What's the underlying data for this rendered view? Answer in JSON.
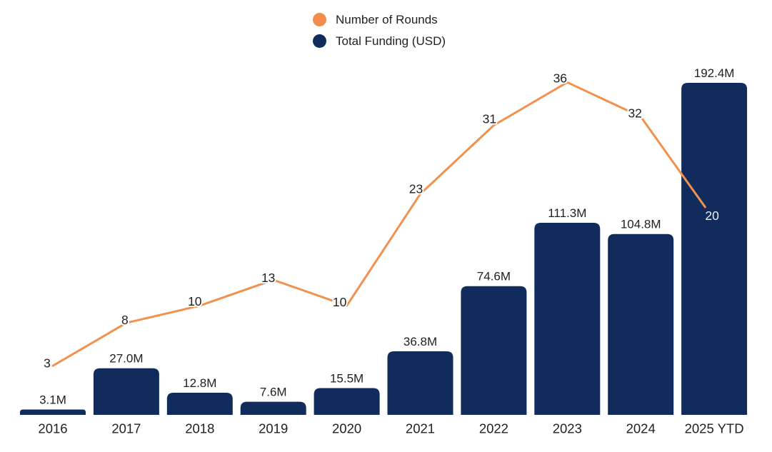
{
  "page": {
    "background": "#ffffff",
    "text_color": "#212121"
  },
  "legend": {
    "items": [
      {
        "label": "Number of Rounds",
        "color": "#F28C4D"
      },
      {
        "label": "Total Funding (USD)",
        "color": "#112B5D"
      }
    ]
  },
  "chart_data": {
    "type": "combo-bar-line",
    "title": "",
    "xlabel": "",
    "ylabel": "",
    "grid": false,
    "axis_lines": "none",
    "legend_position": "top-center",
    "categories": [
      "2016",
      "2017",
      "2018",
      "2019",
      "2020",
      "2021",
      "2022",
      "2023",
      "2024",
      "2025 YTD"
    ],
    "series": [
      {
        "name": "Total Funding (USD)",
        "type": "bar",
        "color": "#112B5D",
        "unit": "USD millions",
        "values": [
          3.1,
          27.0,
          12.8,
          7.6,
          15.5,
          36.8,
          74.6,
          111.3,
          104.8,
          192.4
        ],
        "labels": [
          "3.1M",
          "27.0M",
          "12.8M",
          "7.6M",
          "15.5M",
          "36.8M",
          "74.6M",
          "111.3M",
          "104.8M",
          "192.4M"
        ],
        "label_color": "#212121",
        "ylim": [
          0,
          200
        ]
      },
      {
        "name": "Number of Rounds",
        "type": "line",
        "color": "#F0914E",
        "values": [
          3,
          8,
          10,
          13,
          10,
          23,
          31,
          36,
          32,
          20
        ],
        "labels": [
          "3",
          "8",
          "10",
          "13",
          "10",
          "23",
          "31",
          "36",
          "32",
          "20"
        ],
        "label_color": "#212121",
        "last_label_color": "#ECF1F4",
        "ylim": [
          0,
          40
        ]
      }
    ]
  }
}
